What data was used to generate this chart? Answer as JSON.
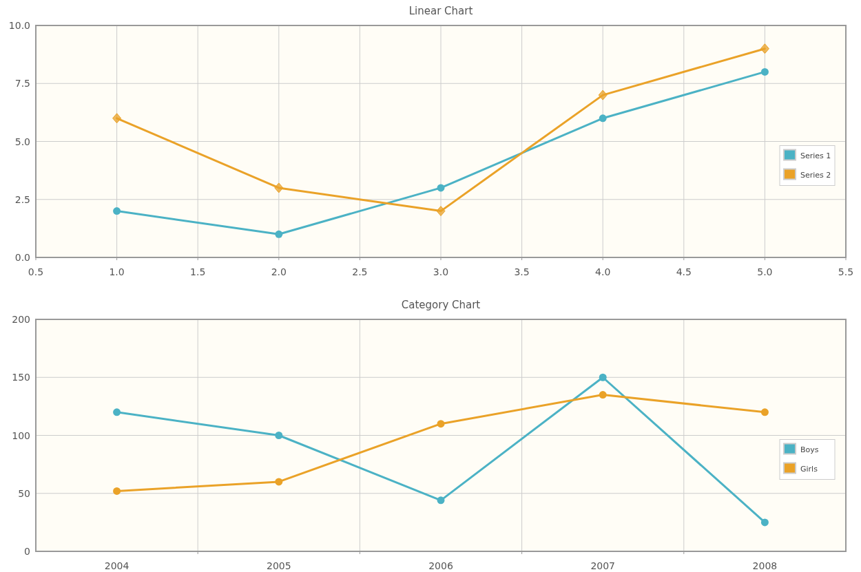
{
  "chart_data": [
    {
      "type": "line",
      "title": "Linear Chart",
      "x": [
        1,
        2,
        3,
        4,
        5
      ],
      "xlim": [
        0.5,
        5.5
      ],
      "xticks": [
        {
          "value": 0.5,
          "label": "0.5"
        },
        {
          "value": 1,
          "label": "1.0"
        },
        {
          "value": 1.5,
          "label": "1.5"
        },
        {
          "value": 2,
          "label": "2.0"
        },
        {
          "value": 2.5,
          "label": "2.5"
        },
        {
          "value": 3,
          "label": "3.0"
        },
        {
          "value": 3.5,
          "label": "3.5"
        },
        {
          "value": 4,
          "label": "4.0"
        },
        {
          "value": 4.5,
          "label": "4.5"
        },
        {
          "value": 5,
          "label": "5.0"
        },
        {
          "value": 5.5,
          "label": "5.5"
        }
      ],
      "ylim": [
        0,
        10
      ],
      "yticks": [
        {
          "value": 0,
          "label": "0.0"
        },
        {
          "value": 2.5,
          "label": "2.5"
        },
        {
          "value": 5,
          "label": "5.0"
        },
        {
          "value": 7.5,
          "label": "7.5"
        },
        {
          "value": 10,
          "label": "10.0"
        }
      ],
      "grid": true,
      "legend": "right",
      "series": [
        {
          "name": "Series 1",
          "color": "#4bb2c5",
          "marker": "circle",
          "values": [
            2,
            1,
            3,
            6,
            8
          ]
        },
        {
          "name": "Series 2",
          "color": "#eaa228",
          "marker": "diamond",
          "values": [
            6,
            3,
            2,
            7,
            9
          ]
        }
      ]
    },
    {
      "type": "line",
      "title": "Category Chart",
      "categories": [
        "2004",
        "2005",
        "2006",
        "2007",
        "2008"
      ],
      "ylim": [
        0,
        200
      ],
      "yticks": [
        0,
        50,
        100,
        150,
        200
      ],
      "grid": true,
      "legend": "right",
      "series": [
        {
          "name": "Boys",
          "color": "#4bb2c5",
          "marker": "circle",
          "values": [
            120,
            100,
            44,
            150,
            25
          ]
        },
        {
          "name": "Girls",
          "color": "#eaa228",
          "marker": "circle",
          "values": [
            52,
            60,
            110,
            135,
            120
          ]
        }
      ]
    }
  ]
}
